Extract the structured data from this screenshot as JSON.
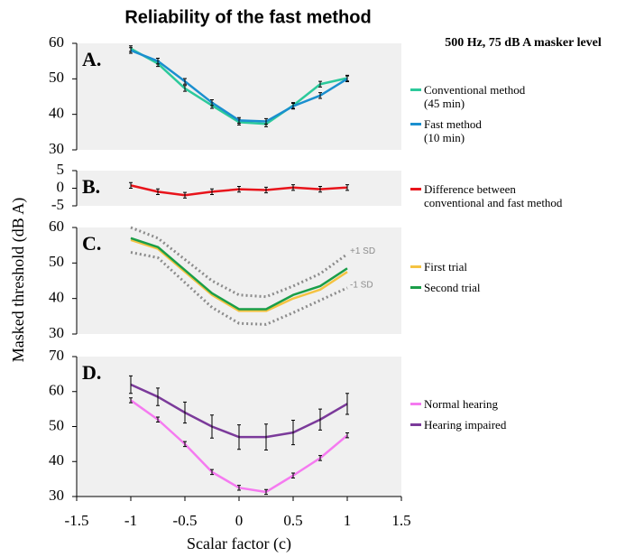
{
  "title": "Reliability of the fast method",
  "subtitle": "500 Hz, 75 dB A masker level",
  "ylabel": "Masked threshold (dB A)",
  "xlabel": "Scalar factor (c)",
  "chart_data": [
    {
      "type": "line",
      "panel_label": "A.",
      "x": [
        -1,
        -0.75,
        -0.5,
        -0.25,
        0,
        0.25,
        0.5,
        0.75,
        1
      ],
      "ylim": [
        30,
        60
      ],
      "yticks": [
        30,
        40,
        50,
        60
      ],
      "series": [
        {
          "name": "Conventional method\n(45 min)",
          "color": "#2cc99b",
          "values": [
            58.5,
            54.3,
            47.3,
            42.5,
            37.8,
            37.3,
            42.5,
            48.5,
            50.2
          ],
          "errors": [
            0.8,
            0.8,
            0.8,
            0.8,
            0.8,
            0.8,
            0.8,
            0.8,
            0.8
          ]
        },
        {
          "name": "Fast method\n(10 min)",
          "color": "#1a8fcf",
          "values": [
            58,
            55,
            49.3,
            43.3,
            38.3,
            38,
            42.3,
            45.3,
            50
          ],
          "errors": [
            0.8,
            0.8,
            0.8,
            0.8,
            0.8,
            0.8,
            0.8,
            0.8,
            0.8
          ]
        }
      ]
    },
    {
      "type": "line",
      "panel_label": "B.",
      "x": [
        -1,
        -0.75,
        -0.5,
        -0.25,
        0,
        0.25,
        0.5,
        0.75,
        1
      ],
      "ylim": [
        -5,
        5
      ],
      "yticks": [
        -5,
        0,
        5
      ],
      "series": [
        {
          "name": "Difference between\nconventional and fast method",
          "color": "#e8141b",
          "values": [
            0.8,
            -1,
            -2,
            -1,
            -0.3,
            -0.5,
            0.2,
            -0.3,
            0.2
          ],
          "errors": [
            0.8,
            0.8,
            0.8,
            0.8,
            0.8,
            0.8,
            0.8,
            0.8,
            0.8
          ]
        }
      ]
    },
    {
      "type": "line",
      "panel_label": "C.",
      "x": [
        -1,
        -0.75,
        -0.5,
        -0.25,
        0,
        0.25,
        0.5,
        0.75,
        1
      ],
      "ylim": [
        30,
        60
      ],
      "yticks": [
        30,
        40,
        50,
        60
      ],
      "series": [
        {
          "name": "First trial",
          "color": "#f5c342",
          "values": [
            56.5,
            54,
            47.5,
            41,
            36.5,
            36.5,
            40,
            42.5,
            47.5
          ]
        },
        {
          "name": "Second trial",
          "color": "#1a9e49",
          "values": [
            57,
            54.5,
            48,
            41.5,
            37,
            37,
            41,
            43.5,
            48.5
          ]
        },
        {
          "name": "+1 SD",
          "color": "#8c8c8c",
          "dotted": true,
          "values": [
            60,
            57,
            51,
            45,
            41,
            40.5,
            43.5,
            47,
            52.5
          ]
        },
        {
          "name": "-1 SD",
          "color": "#8c8c8c",
          "dotted": true,
          "values": [
            53,
            51.5,
            44.5,
            37.5,
            33,
            32.7,
            36,
            39.5,
            43
          ]
        }
      ]
    },
    {
      "type": "line",
      "panel_label": "D.",
      "x": [
        -1,
        -0.75,
        -0.5,
        -0.25,
        0,
        0.25,
        0.5,
        0.75,
        1
      ],
      "ylim": [
        30,
        70
      ],
      "yticks": [
        30,
        40,
        50,
        60,
        70
      ],
      "xlim": [
        -1.5,
        1.5
      ],
      "xticks": [
        -1.5,
        -1,
        -0.5,
        0,
        0.5,
        1,
        1.5
      ],
      "series": [
        {
          "name": "Normal hearing",
          "color": "#f57af0",
          "values": [
            57.5,
            52,
            45,
            37,
            32.5,
            31.3,
            36,
            41,
            47.5
          ],
          "errors": [
            0.7,
            0.7,
            0.7,
            0.7,
            0.7,
            0.7,
            0.7,
            0.7,
            0.7
          ]
        },
        {
          "name": "Hearing impaired",
          "color": "#7b3a9a",
          "values": [
            62,
            58.5,
            54,
            50,
            47,
            47,
            48.3,
            52,
            56.5
          ],
          "errors": [
            2.5,
            2.5,
            3,
            3.3,
            3.5,
            3.7,
            3.5,
            3,
            3
          ]
        }
      ]
    }
  ]
}
